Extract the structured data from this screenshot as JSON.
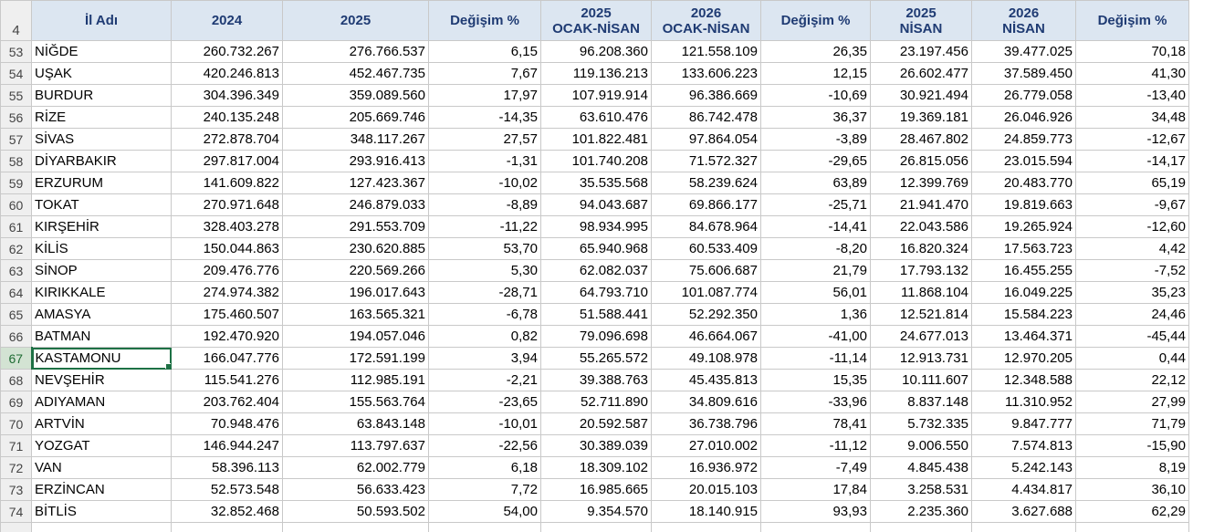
{
  "sheet": {
    "header_row_number": "4",
    "columns": [
      "İl Adı",
      "2024",
      "2025",
      "Değişim %",
      "2025\nOCAK-NİSAN",
      "2026\nOCAK-NİSAN",
      "Değişim %",
      "2025\nNİSAN",
      "2026\nNİSAN",
      "Değişim %"
    ],
    "selected_row": "67",
    "rows": [
      {
        "n": "53",
        "cells": [
          "NİĞDE",
          "260.732.267",
          "276.766.537",
          "6,15",
          "96.208.360",
          "121.558.109",
          "26,35",
          "23.197.456",
          "39.477.025",
          "70,18"
        ]
      },
      {
        "n": "54",
        "cells": [
          "UŞAK",
          "420.246.813",
          "452.467.735",
          "7,67",
          "119.136.213",
          "133.606.223",
          "12,15",
          "26.602.477",
          "37.589.450",
          "41,30"
        ]
      },
      {
        "n": "55",
        "cells": [
          "BURDUR",
          "304.396.349",
          "359.089.560",
          "17,97",
          "107.919.914",
          "96.386.669",
          "-10,69",
          "30.921.494",
          "26.779.058",
          "-13,40"
        ]
      },
      {
        "n": "56",
        "cells": [
          "RİZE",
          "240.135.248",
          "205.669.746",
          "-14,35",
          "63.610.476",
          "86.742.478",
          "36,37",
          "19.369.181",
          "26.046.926",
          "34,48"
        ]
      },
      {
        "n": "57",
        "cells": [
          "SİVAS",
          "272.878.704",
          "348.117.267",
          "27,57",
          "101.822.481",
          "97.864.054",
          "-3,89",
          "28.467.802",
          "24.859.773",
          "-12,67"
        ]
      },
      {
        "n": "58",
        "cells": [
          "DİYARBAKIR",
          "297.817.004",
          "293.916.413",
          "-1,31",
          "101.740.208",
          "71.572.327",
          "-29,65",
          "26.815.056",
          "23.015.594",
          "-14,17"
        ]
      },
      {
        "n": "59",
        "cells": [
          "ERZURUM",
          "141.609.822",
          "127.423.367",
          "-10,02",
          "35.535.568",
          "58.239.624",
          "63,89",
          "12.399.769",
          "20.483.770",
          "65,19"
        ]
      },
      {
        "n": "60",
        "cells": [
          "TOKAT",
          "270.971.648",
          "246.879.033",
          "-8,89",
          "94.043.687",
          "69.866.177",
          "-25,71",
          "21.941.470",
          "19.819.663",
          "-9,67"
        ]
      },
      {
        "n": "61",
        "cells": [
          "KIRŞEHİR",
          "328.403.278",
          "291.553.709",
          "-11,22",
          "98.934.995",
          "84.678.964",
          "-14,41",
          "22.043.586",
          "19.265.924",
          "-12,60"
        ]
      },
      {
        "n": "62",
        "cells": [
          "KİLİS",
          "150.044.863",
          "230.620.885",
          "53,70",
          "65.940.968",
          "60.533.409",
          "-8,20",
          "16.820.324",
          "17.563.723",
          "4,42"
        ]
      },
      {
        "n": "63",
        "cells": [
          "SİNOP",
          "209.476.776",
          "220.569.266",
          "5,30",
          "62.082.037",
          "75.606.687",
          "21,79",
          "17.793.132",
          "16.455.255",
          "-7,52"
        ]
      },
      {
        "n": "64",
        "cells": [
          "KIRIKKALE",
          "274.974.382",
          "196.017.643",
          "-28,71",
          "64.793.710",
          "101.087.774",
          "56,01",
          "11.868.104",
          "16.049.225",
          "35,23"
        ]
      },
      {
        "n": "65",
        "cells": [
          "AMASYA",
          "175.460.507",
          "163.565.321",
          "-6,78",
          "51.588.441",
          "52.292.350",
          "1,36",
          "12.521.814",
          "15.584.223",
          "24,46"
        ]
      },
      {
        "n": "66",
        "cells": [
          "BATMAN",
          "192.470.920",
          "194.057.046",
          "0,82",
          "79.096.698",
          "46.664.067",
          "-41,00",
          "24.677.013",
          "13.464.371",
          "-45,44"
        ]
      },
      {
        "n": "67",
        "cells": [
          "KASTAMONU",
          "166.047.776",
          "172.591.199",
          "3,94",
          "55.265.572",
          "49.108.978",
          "-11,14",
          "12.913.731",
          "12.970.205",
          "0,44"
        ]
      },
      {
        "n": "68",
        "cells": [
          "NEVŞEHİR",
          "115.541.276",
          "112.985.191",
          "-2,21",
          "39.388.763",
          "45.435.813",
          "15,35",
          "10.111.607",
          "12.348.588",
          "22,12"
        ]
      },
      {
        "n": "69",
        "cells": [
          "ADIYAMAN",
          "203.762.404",
          "155.563.764",
          "-23,65",
          "52.711.890",
          "34.809.616",
          "-33,96",
          "8.837.148",
          "11.310.952",
          "27,99"
        ]
      },
      {
        "n": "70",
        "cells": [
          "ARTVİN",
          "70.948.476",
          "63.843.148",
          "-10,01",
          "20.592.587",
          "36.738.796",
          "78,41",
          "5.732.335",
          "9.847.777",
          "71,79"
        ]
      },
      {
        "n": "71",
        "cells": [
          "YOZGAT",
          "146.944.247",
          "113.797.637",
          "-22,56",
          "30.389.039",
          "27.010.002",
          "-11,12",
          "9.006.550",
          "7.574.813",
          "-15,90"
        ]
      },
      {
        "n": "72",
        "cells": [
          "VAN",
          "58.396.113",
          "62.002.779",
          "6,18",
          "18.309.102",
          "16.936.972",
          "-7,49",
          "4.845.438",
          "5.242.143",
          "8,19"
        ]
      },
      {
        "n": "73",
        "cells": [
          "ERZİNCAN",
          "52.573.548",
          "56.633.423",
          "7,72",
          "16.985.665",
          "20.015.103",
          "17,84",
          "3.258.531",
          "4.434.817",
          "36,10"
        ]
      },
      {
        "n": "74",
        "cells": [
          "BİTLİS",
          "32.852.468",
          "50.593.502",
          "54,00",
          "9.354.570",
          "18.140.915",
          "93,93",
          "2.235.360",
          "3.627.688",
          "62,29"
        ]
      }
    ]
  }
}
